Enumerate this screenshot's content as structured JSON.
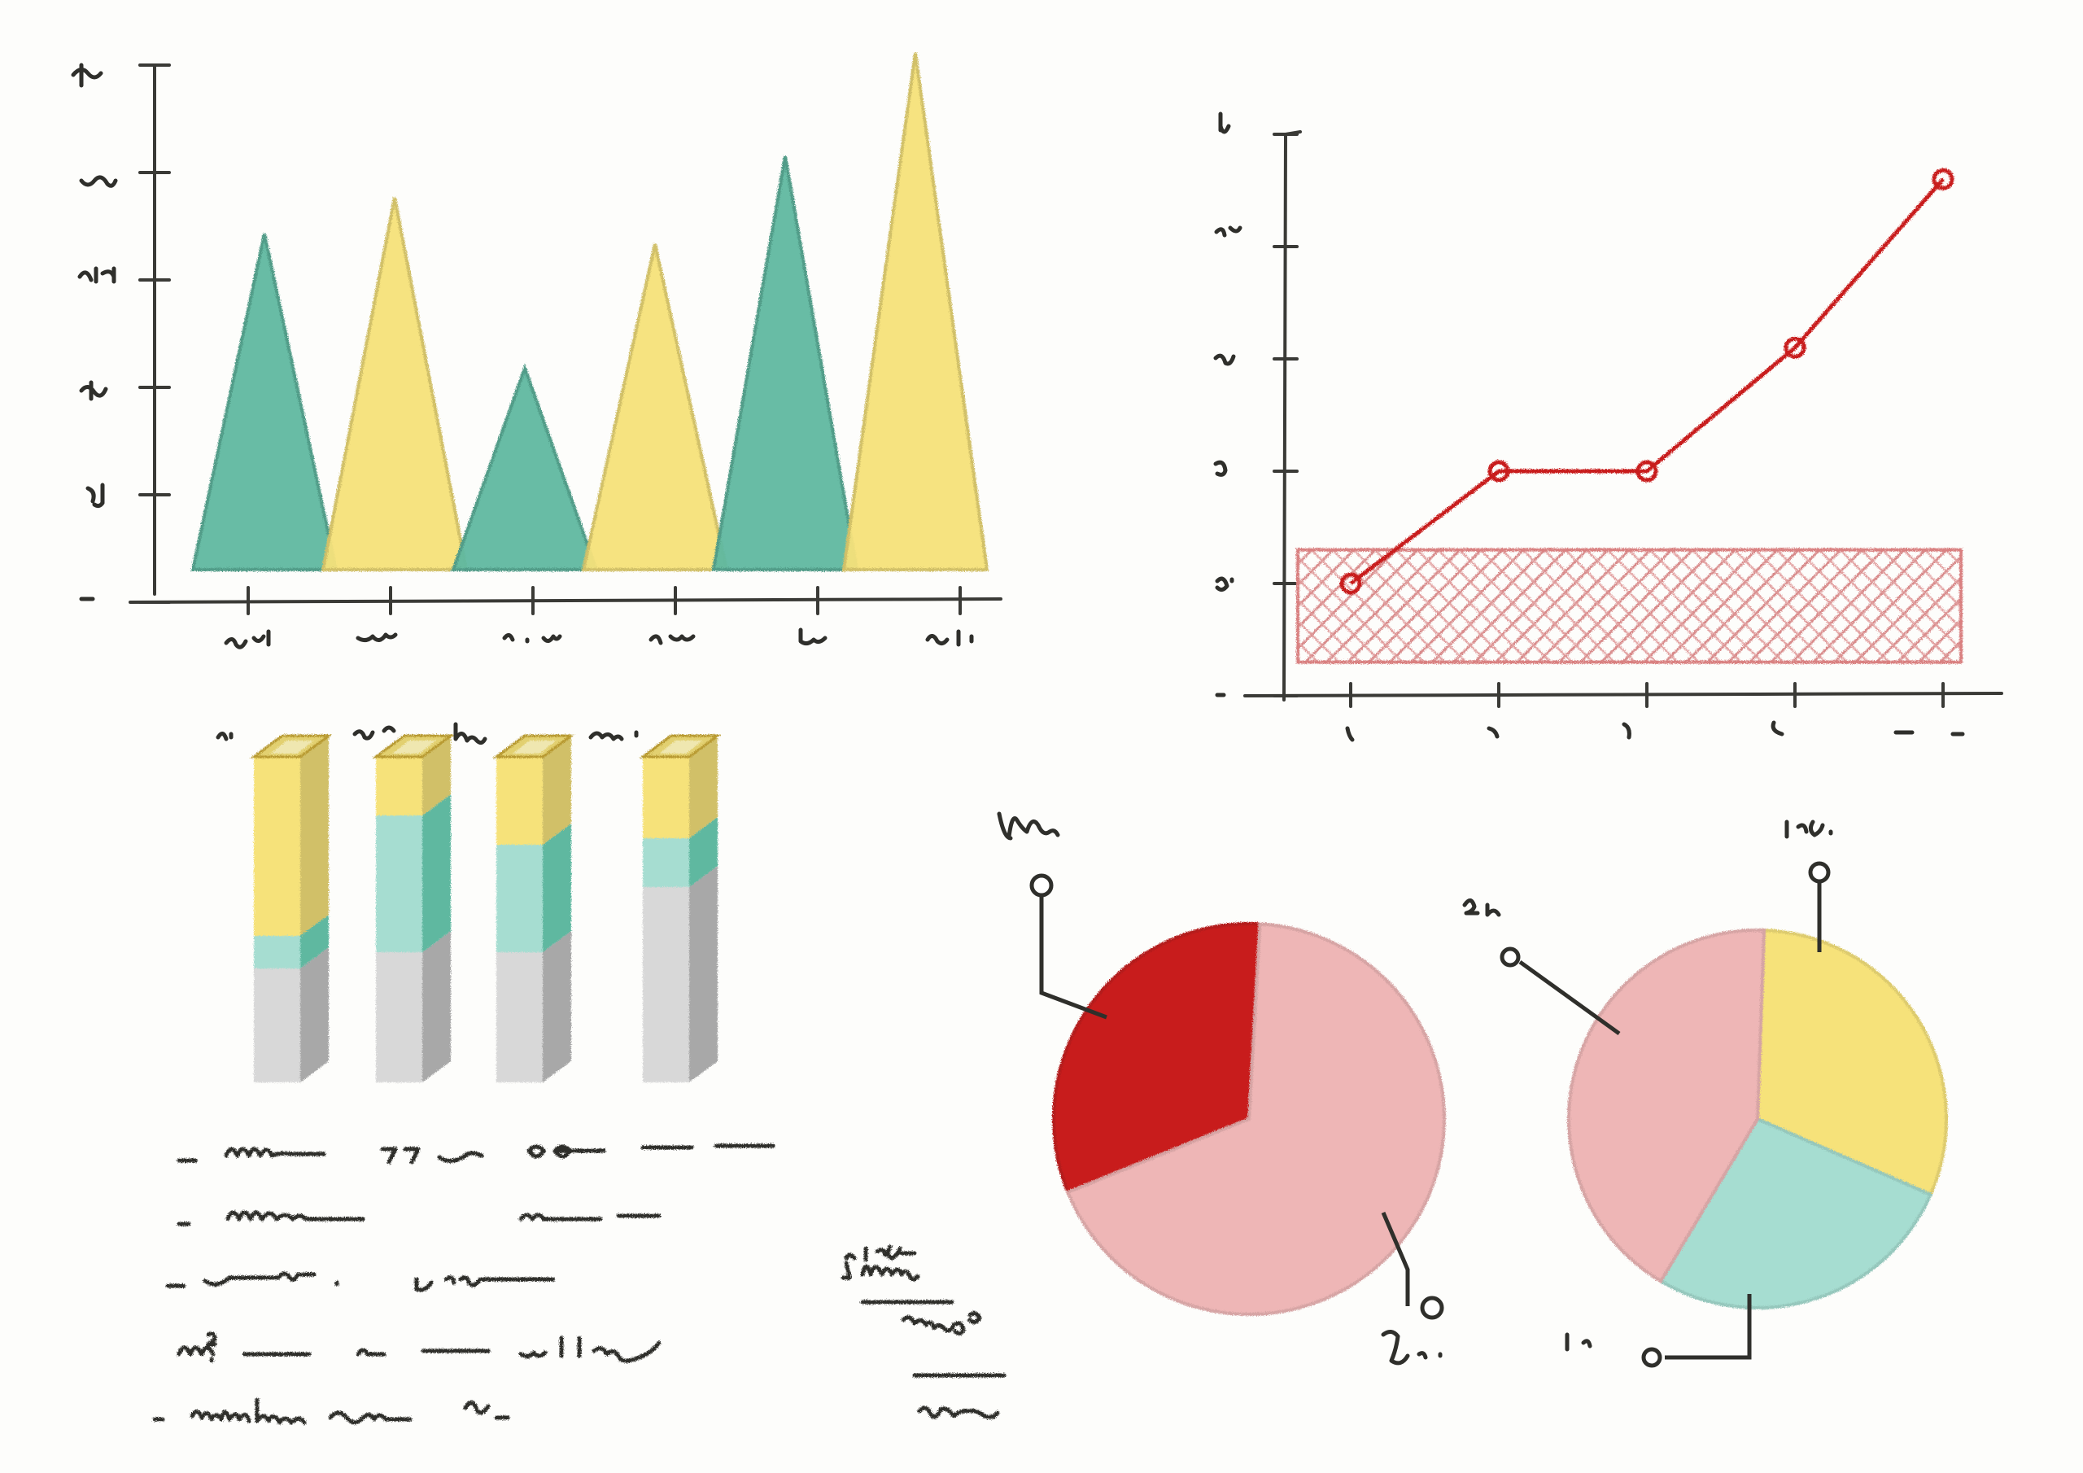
{
  "colors": {
    "teal": "#5fb8a0",
    "yellow": "#f6e27a",
    "red": "#c81d1d",
    "pink": "#eeb6b6",
    "mint": "#a6ddd1",
    "grey": "#d8d8d8",
    "ink": "#2f2f2b"
  },
  "chart_data": [
    {
      "type": "bar",
      "variant": "triangle-peaks",
      "hand_drawn": true,
      "labels_legible": false,
      "series": [
        {
          "color": "teal",
          "values": [
            65,
            39,
            80
          ]
        },
        {
          "color": "yellow",
          "values": [
            72,
            63,
            100
          ]
        }
      ],
      "category_order": [
        "teal",
        "yellow",
        "teal",
        "yellow",
        "teal",
        "yellow"
      ],
      "ylim": [
        0,
        100
      ],
      "y_ticks": 5,
      "x_ticks": 6
    },
    {
      "type": "line",
      "hand_drawn": true,
      "labels_legible": false,
      "x": [
        1,
        2,
        3,
        4,
        5
      ],
      "values": [
        1.0,
        2.0,
        2.0,
        3.1,
        4.6
      ],
      "color": "red",
      "markers": true,
      "band": {
        "from": 0.3,
        "to": 1.3,
        "pattern": "crosshatch",
        "color": "red"
      },
      "ylim": [
        0,
        5
      ],
      "y_ticks": 6,
      "x_ticks": 5
    },
    {
      "type": "bar",
      "variant": "stacked-3d-columns",
      "hand_drawn": true,
      "labels_legible": false,
      "segment_colors": [
        "grey",
        "teal",
        "yellow"
      ],
      "stacks": [
        [
          35,
          10,
          55
        ],
        [
          40,
          42,
          18
        ],
        [
          40,
          33,
          27
        ],
        [
          60,
          15,
          25
        ]
      ]
    },
    {
      "type": "pie",
      "hand_drawn": true,
      "labels_legible": false,
      "slices": [
        {
          "color": "red",
          "value": 32
        },
        {
          "color": "pink",
          "value": 68
        }
      ]
    },
    {
      "type": "pie",
      "hand_drawn": true,
      "labels_legible": false,
      "slices": [
        {
          "color": "yellow",
          "value": 31
        },
        {
          "color": "mint",
          "value": 27
        },
        {
          "color": "pink",
          "value": 42
        }
      ]
    }
  ]
}
